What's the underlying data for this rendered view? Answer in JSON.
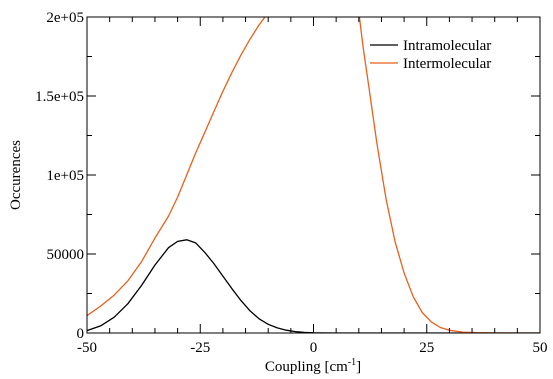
{
  "chart_data": {
    "type": "line",
    "title": "",
    "xlabel": "Coupling [cm",
    "xlabel_superscript": "-1",
    "xlabel_suffix": "]",
    "ylabel": "Occurences",
    "xlim": [
      -50,
      50
    ],
    "ylim": [
      0,
      200000
    ],
    "xticks": [
      -50,
      -25,
      0,
      25,
      50
    ],
    "xtick_labels": [
      "-50",
      "-25",
      "0",
      "25",
      "50"
    ],
    "yticks": [
      0,
      50000,
      100000,
      150000,
      200000
    ],
    "ytick_labels": [
      "0",
      "50000",
      "1e+05",
      "1.5e+05",
      "2e+05"
    ],
    "grid": false,
    "legend_position": "top-right",
    "series": [
      {
        "name": "Intramolecular",
        "color": "#000000",
        "x": [
          -50,
          -47,
          -44,
          -41,
          -38,
          -35,
          -32,
          -30,
          -28,
          -26,
          -24,
          -22,
          -20,
          -18,
          -16,
          -14,
          -12,
          -10,
          -8,
          -6,
          -4,
          -2,
          0,
          2,
          5,
          10,
          20,
          50
        ],
        "y": [
          1500,
          4500,
          10000,
          18500,
          30000,
          43000,
          54000,
          58000,
          59000,
          57000,
          51000,
          44000,
          36000,
          28000,
          20500,
          14000,
          9000,
          5500,
          3200,
          1800,
          900,
          400,
          150,
          60,
          10,
          0,
          0,
          0
        ]
      },
      {
        "name": "Intermolecular",
        "color": "#e8601c",
        "x": [
          -50,
          -47,
          -44,
          -41,
          -38,
          -35,
          -32,
          -30,
          -28,
          -26,
          -24,
          -22,
          -20,
          -18,
          -16,
          -14,
          -12,
          -11,
          -10,
          10,
          11,
          12,
          14,
          16,
          18,
          20,
          22,
          24,
          26,
          28,
          30,
          33,
          36,
          40,
          45,
          50
        ],
        "y": [
          11000,
          17000,
          24000,
          33000,
          45000,
          60000,
          74000,
          86000,
          100000,
          114000,
          127000,
          140000,
          153000,
          165000,
          176000,
          186000,
          195000,
          199000,
          203000,
          203000,
          180000,
          160000,
          120000,
          85000,
          58000,
          38000,
          23000,
          13000,
          7000,
          3500,
          1700,
          600,
          200,
          50,
          10,
          0
        ]
      }
    ]
  }
}
